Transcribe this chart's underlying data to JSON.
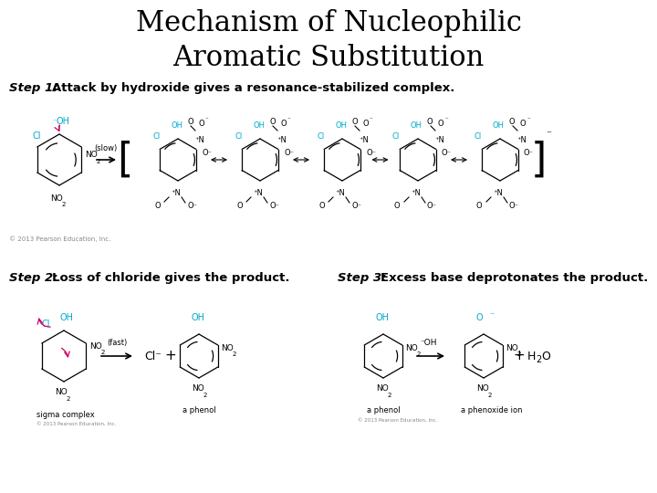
{
  "title_line1": "Mechanism of Nucleophilic",
  "title_line2": "Aromatic Substitution",
  "title_fontsize": 22,
  "title_font": "DejaVu Serif",
  "step1_label": "Step 1:",
  "step1_text": " Attack by hydroxide gives a resonance-stabilized complex.",
  "step2_label": "Step 2:",
  "step2_text": " Loss of chloride gives the product.",
  "step3_label": "Step 3:",
  "step3_text": " Excess base deprotonates the product.",
  "step_fontsize": 9.5,
  "background_color": "#ffffff",
  "text_color": "#000000",
  "step_color": "#000000",
  "cyan_color": "#00aacc",
  "pink_color": "#cc0066",
  "copyright_color": "#888888"
}
